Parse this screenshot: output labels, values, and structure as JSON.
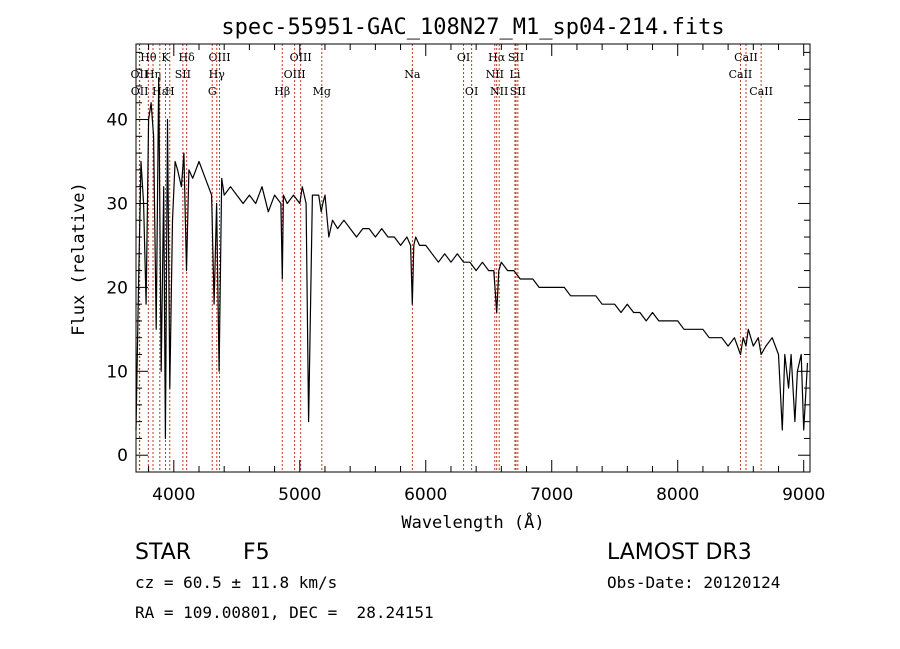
{
  "chart_data": {
    "type": "line",
    "title": "spec-55951-GAC_108N27_M1_sp04-214.fits",
    "xlabel": "Wavelength (Å)",
    "ylabel": "Flux (relative)",
    "xlim": [
      3700,
      9050
    ],
    "ylim": [
      -2,
      49
    ],
    "x_ticks": [
      4000,
      5000,
      6000,
      7000,
      8000,
      9000
    ],
    "y_ticks": [
      0,
      10,
      20,
      30,
      40
    ],
    "series": [
      {
        "name": "flux",
        "x": [
          3700,
          3720,
          3740,
          3760,
          3780,
          3800,
          3820,
          3840,
          3860,
          3880,
          3900,
          3920,
          3933,
          3950,
          3968,
          3990,
          4010,
          4030,
          4060,
          4080,
          4101,
          4120,
          4150,
          4200,
          4250,
          4300,
          4320,
          4340,
          4360,
          4380,
          4400,
          4450,
          4500,
          4550,
          4600,
          4650,
          4700,
          4750,
          4800,
          4850,
          4861,
          4870,
          4900,
          4950,
          5000,
          5020,
          5050,
          5070,
          5100,
          5150,
          5170,
          5183,
          5200,
          5230,
          5260,
          5300,
          5350,
          5400,
          5450,
          5500,
          5550,
          5600,
          5650,
          5700,
          5750,
          5800,
          5850,
          5880,
          5893,
          5905,
          5920,
          5950,
          6000,
          6050,
          6100,
          6150,
          6200,
          6250,
          6300,
          6350,
          6400,
          6450,
          6500,
          6540,
          6563,
          6580,
          6600,
          6650,
          6700,
          6750,
          6800,
          6850,
          6900,
          6950,
          7000,
          7050,
          7100,
          7150,
          7200,
          7250,
          7300,
          7350,
          7400,
          7450,
          7500,
          7550,
          7600,
          7650,
          7700,
          7750,
          7800,
          7850,
          7900,
          7950,
          8000,
          8050,
          8100,
          8150,
          8200,
          8250,
          8300,
          8350,
          8400,
          8450,
          8498,
          8520,
          8542,
          8560,
          8600,
          8640,
          8662,
          8700,
          8750,
          8800,
          8830,
          8850,
          8880,
          8900,
          8930,
          8950,
          8980,
          9000,
          9030
        ],
        "values": [
          3,
          20,
          35,
          30,
          18,
          40,
          42,
          38,
          15,
          45,
          10,
          32,
          2,
          40,
          8,
          28,
          35,
          34,
          32,
          36,
          22,
          34,
          33,
          35,
          33,
          31,
          18,
          30,
          10,
          33,
          31,
          32,
          31,
          30,
          31,
          30,
          32,
          29,
          31,
          30,
          21,
          31,
          30,
          31,
          30,
          32,
          30,
          4,
          31,
          31,
          29,
          30,
          31,
          26,
          28,
          27,
          28,
          27,
          26,
          27,
          27,
          26,
          27,
          26,
          26,
          25,
          26,
          25,
          18,
          25,
          26,
          25,
          25,
          24,
          23,
          24,
          23,
          24,
          23,
          23,
          22,
          23,
          22,
          22,
          17,
          22,
          23,
          22,
          22,
          21,
          21,
          21,
          20,
          20,
          20,
          20,
          20,
          19,
          19,
          19,
          19,
          19,
          18,
          18,
          18,
          17,
          18,
          17,
          17,
          16,
          17,
          16,
          16,
          16,
          16,
          15,
          15,
          15,
          15,
          14,
          14,
          14,
          13,
          14,
          12,
          14,
          13,
          15,
          13,
          14,
          12,
          13,
          14,
          12,
          3,
          12,
          8,
          12,
          4,
          10,
          12,
          3,
          11
        ]
      }
    ],
    "lines": [
      {
        "label": "Hθ",
        "wavelength": 3798,
        "row": 1
      },
      {
        "label": "OII",
        "wavelength": 3727,
        "row": 2
      },
      {
        "label": "OII",
        "wavelength": 3729,
        "row": 3
      },
      {
        "label": "Hη",
        "wavelength": 3835,
        "row": 2
      },
      {
        "label": "Hε",
        "wavelength": 3889,
        "row": 3
      },
      {
        "label": "K",
        "wavelength": 3934,
        "row": 1
      },
      {
        "label": "H",
        "wavelength": 3968,
        "row": 3
      },
      {
        "label": "Hδ",
        "wavelength": 4102,
        "row": 1
      },
      {
        "label": "SII",
        "wavelength": 4072,
        "row": 2
      },
      {
        "label": "OIII",
        "wavelength": 4363,
        "row": 1
      },
      {
        "label": "Hγ",
        "wavelength": 4341,
        "row": 2
      },
      {
        "label": "G",
        "wavelength": 4305,
        "row": 3
      },
      {
        "label": "Hβ",
        "wavelength": 4861,
        "row": 3
      },
      {
        "label": "OIII",
        "wavelength": 5007,
        "row": 1
      },
      {
        "label": "OIII",
        "wavelength": 4959,
        "row": 2
      },
      {
        "label": "Mg",
        "wavelength": 5175,
        "row": 3
      },
      {
        "label": "Na",
        "wavelength": 5894,
        "row": 2
      },
      {
        "label": "OI",
        "wavelength": 6300,
        "row": 1
      },
      {
        "label": "OI",
        "wavelength": 6364,
        "row": 3
      },
      {
        "label": "Hα",
        "wavelength": 6563,
        "row": 1
      },
      {
        "label": "NII",
        "wavelength": 6548,
        "row": 2
      },
      {
        "label": "NII",
        "wavelength": 6583,
        "row": 3
      },
      {
        "label": "SII",
        "wavelength": 6716,
        "row": 1
      },
      {
        "label": "Li",
        "wavelength": 6708,
        "row": 2
      },
      {
        "label": "SII",
        "wavelength": 6731,
        "row": 3
      },
      {
        "label": "CaII",
        "wavelength": 8542,
        "row": 1
      },
      {
        "label": "CaII",
        "wavelength": 8498,
        "row": 2
      },
      {
        "label": "CaII",
        "wavelength": 8662,
        "row": 3
      }
    ]
  },
  "info": {
    "class_label": "STAR",
    "subclass": "F5",
    "survey": "LAMOST DR3",
    "cz": "cz = 60.5 ± 11.8 km/s",
    "obs_date": "Obs-Date: 20120124",
    "radec": "RA = 109.00801, DEC =  28.24151"
  }
}
